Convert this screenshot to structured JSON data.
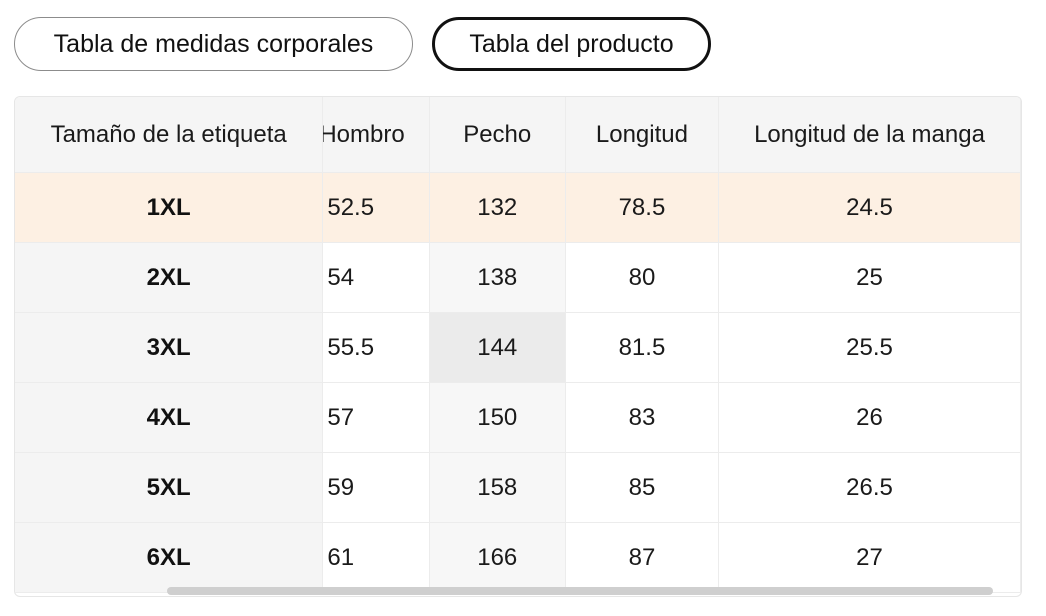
{
  "tabs": {
    "body": "Tabla de medidas corporales",
    "product": "Tabla del producto"
  },
  "table": {
    "headers": {
      "size": "Tamaño de la etiqueta",
      "shoulder": "Hombro",
      "chest": "Pecho",
      "length": "Longitud",
      "sleeve": "Longitud de la manga"
    },
    "rows": [
      {
        "size": "1XL",
        "shoulder": "52.5",
        "chest": "132",
        "length": "78.5",
        "sleeve": "24.5"
      },
      {
        "size": "2XL",
        "shoulder": "54",
        "chest": "138",
        "length": "80",
        "sleeve": "25"
      },
      {
        "size": "3XL",
        "shoulder": "55.5",
        "chest": "144",
        "length": "81.5",
        "sleeve": "25.5"
      },
      {
        "size": "4XL",
        "shoulder": "57",
        "chest": "150",
        "length": "83",
        "sleeve": "26"
      },
      {
        "size": "5XL",
        "shoulder": "59",
        "chest": "158",
        "length": "85",
        "sleeve": "26.5"
      },
      {
        "size": "6XL",
        "shoulder": "61",
        "chest": "166",
        "length": "87",
        "sleeve": "27"
      }
    ],
    "highlighted_row": "1XL"
  },
  "colors": {
    "highlight": "#fdf0e3",
    "header_bg": "#f5f5f5",
    "active_tab_border": "#111111"
  }
}
